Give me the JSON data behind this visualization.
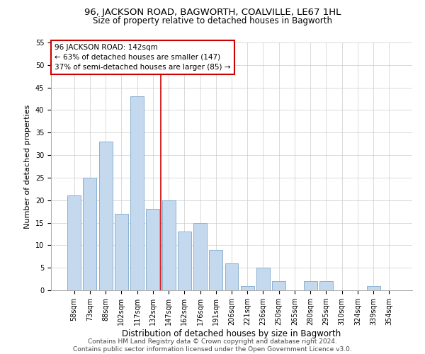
{
  "title": "96, JACKSON ROAD, BAGWORTH, COALVILLE, LE67 1HL",
  "subtitle": "Size of property relative to detached houses in Bagworth",
  "xlabel": "Distribution of detached houses by size in Bagworth",
  "ylabel": "Number of detached properties",
  "bar_labels": [
    "58sqm",
    "73sqm",
    "88sqm",
    "102sqm",
    "117sqm",
    "132sqm",
    "147sqm",
    "162sqm",
    "176sqm",
    "191sqm",
    "206sqm",
    "221sqm",
    "236sqm",
    "250sqm",
    "265sqm",
    "280sqm",
    "295sqm",
    "310sqm",
    "324sqm",
    "339sqm",
    "354sqm"
  ],
  "bar_values": [
    21,
    25,
    33,
    17,
    43,
    18,
    20,
    13,
    15,
    9,
    6,
    1,
    5,
    2,
    0,
    2,
    2,
    0,
    0,
    1,
    0
  ],
  "bar_color": "#c5d9ee",
  "bar_edgecolor": "#8ab0d0",
  "annotation_box_text": "96 JACKSON ROAD: 142sqm\n← 63% of detached houses are smaller (147)\n37% of semi-detached houses are larger (85) →",
  "annotation_box_color": "#ffffff",
  "annotation_box_edgecolor": "#cc0000",
  "vline_color": "#cc0000",
  "vline_x": 5.5,
  "ylim": [
    0,
    55
  ],
  "yticks": [
    0,
    5,
    10,
    15,
    20,
    25,
    30,
    35,
    40,
    45,
    50,
    55
  ],
  "grid_color": "#cccccc",
  "background_color": "#ffffff",
  "footer_line1": "Contains HM Land Registry data © Crown copyright and database right 2024.",
  "footer_line2": "Contains public sector information licensed under the Open Government Licence v3.0.",
  "title_fontsize": 9.5,
  "subtitle_fontsize": 8.5,
  "xlabel_fontsize": 8.5,
  "ylabel_fontsize": 8,
  "tick_fontsize": 7,
  "annotation_fontsize": 7.5,
  "footer_fontsize": 6.5
}
